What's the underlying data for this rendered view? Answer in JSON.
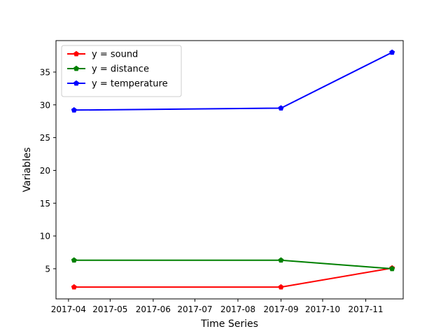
{
  "chart_data": {
    "type": "line",
    "xlabel": "Time Series",
    "ylabel": "Variables",
    "x_ticks": [
      "2017-04",
      "2017-05",
      "2017-06",
      "2017-07",
      "2017-08",
      "2017-09",
      "2017-10",
      "2017-11"
    ],
    "y_ticks": [
      5,
      10,
      15,
      20,
      25,
      30,
      35
    ],
    "xlim": [
      "2017-03-23",
      "2017-11-28"
    ],
    "ylim": [
      0.4,
      39.8
    ],
    "grid": false,
    "legend_position": "upper-left",
    "marker": "pentagon",
    "series": [
      {
        "name": "y = sound",
        "color": "#ff0000",
        "x": [
          "2017-04-05",
          "2017-09-01",
          "2017-11-20"
        ],
        "y": [
          2.2,
          2.2,
          5.1
        ]
      },
      {
        "name": "y = distance",
        "color": "#008000",
        "x": [
          "2017-04-05",
          "2017-09-01",
          "2017-11-20"
        ],
        "y": [
          6.3,
          6.3,
          5.0
        ]
      },
      {
        "name": "y = temperature",
        "color": "#0000ff",
        "x": [
          "2017-04-05",
          "2017-09-01",
          "2017-11-20"
        ],
        "y": [
          29.2,
          29.5,
          38.0
        ]
      }
    ]
  }
}
